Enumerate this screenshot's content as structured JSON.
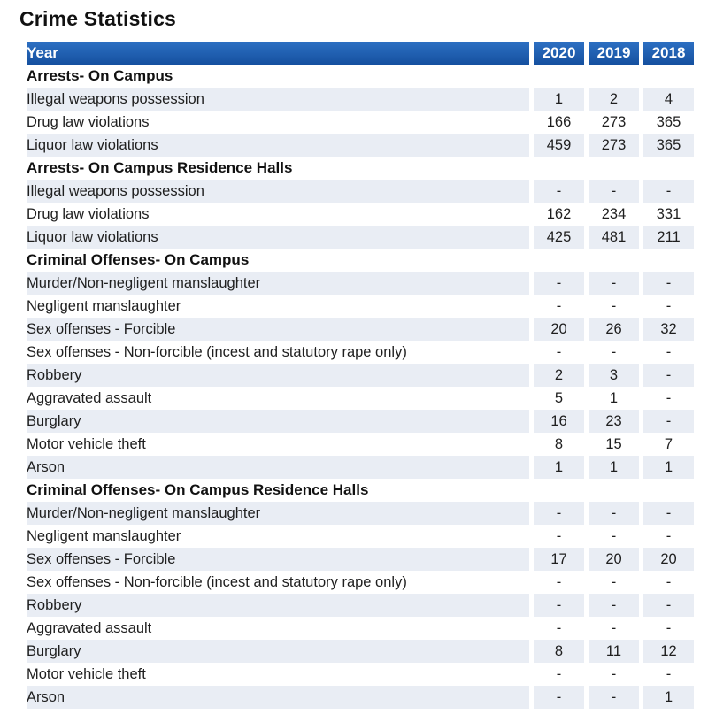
{
  "title": "Crime Statistics",
  "colors": {
    "header_bg_top": "#2d70c3",
    "header_bg_bottom": "#15509f",
    "header_text": "#ffffff",
    "stripe_bg": "#e9edf4",
    "body_text": "#1f1f1f"
  },
  "table": {
    "header": {
      "label": "Year",
      "years": [
        "2020",
        "2019",
        "2018"
      ]
    },
    "sections": [
      {
        "label": "Arrests- On Campus",
        "rows": [
          {
            "label": "Illegal weapons possession",
            "values": [
              "1",
              "2",
              "4"
            ]
          },
          {
            "label": "Drug law violations",
            "values": [
              "166",
              "273",
              "365"
            ]
          },
          {
            "label": "Liquor law violations",
            "values": [
              "459",
              "273",
              "365"
            ]
          }
        ]
      },
      {
        "label": "Arrests- On Campus Residence Halls",
        "rows": [
          {
            "label": "Illegal weapons possession",
            "values": [
              "-",
              "-",
              "-"
            ]
          },
          {
            "label": "Drug law violations",
            "values": [
              "162",
              "234",
              "331"
            ]
          },
          {
            "label": "Liquor law violations",
            "values": [
              "425",
              "481",
              "211"
            ]
          }
        ]
      },
      {
        "label": "Criminal Offenses- On Campus",
        "rows": [
          {
            "label": "Murder/Non-negligent manslaughter",
            "values": [
              "-",
              "-",
              "-"
            ]
          },
          {
            "label": "Negligent manslaughter",
            "values": [
              "-",
              "-",
              "-"
            ]
          },
          {
            "label": "Sex offenses - Forcible",
            "values": [
              "20",
              "26",
              "32"
            ]
          },
          {
            "label": "Sex offenses - Non-forcible (incest and statutory rape only)",
            "values": [
              "-",
              "-",
              "-"
            ]
          },
          {
            "label": "Robbery",
            "values": [
              "2",
              "3",
              "-"
            ]
          },
          {
            "label": "Aggravated assault",
            "values": [
              "5",
              "1",
              "-"
            ]
          },
          {
            "label": "Burglary",
            "values": [
              "16",
              "23",
              "-"
            ]
          },
          {
            "label": "Motor vehicle theft",
            "values": [
              "8",
              "15",
              "7"
            ]
          },
          {
            "label": "Arson",
            "values": [
              "1",
              "1",
              "1"
            ]
          }
        ]
      },
      {
        "label": "Criminal Offenses- On Campus Residence Halls",
        "rows": [
          {
            "label": "Murder/Non-negligent manslaughter",
            "values": [
              "-",
              "-",
              "-"
            ]
          },
          {
            "label": "Negligent manslaughter",
            "values": [
              "-",
              "-",
              "-"
            ]
          },
          {
            "label": "Sex offenses - Forcible",
            "values": [
              "17",
              "20",
              "20"
            ]
          },
          {
            "label": "Sex offenses - Non-forcible (incest and statutory rape only)",
            "values": [
              "-",
              "-",
              "-"
            ]
          },
          {
            "label": "Robbery",
            "values": [
              "-",
              "-",
              "-"
            ]
          },
          {
            "label": "Aggravated assault",
            "values": [
              "-",
              "-",
              "-"
            ]
          },
          {
            "label": "Burglary",
            "values": [
              "8",
              "11",
              "12"
            ]
          },
          {
            "label": "Motor vehicle theft",
            "values": [
              "-",
              "-",
              "-"
            ]
          },
          {
            "label": "Arson",
            "values": [
              "-",
              "-",
              "1"
            ]
          }
        ]
      }
    ]
  },
  "chart_data": {
    "type": "table",
    "title": "Crime Statistics",
    "columns": [
      "Year",
      "2020",
      "2019",
      "2018"
    ],
    "rows": [
      [
        "Arrests- On Campus",
        "",
        "",
        ""
      ],
      [
        "Illegal weapons possession",
        "1",
        "2",
        "4"
      ],
      [
        "Drug law violations",
        "166",
        "273",
        "365"
      ],
      [
        "Liquor law violations",
        "459",
        "273",
        "365"
      ],
      [
        "Arrests- On Campus Residence Halls",
        "",
        "",
        ""
      ],
      [
        "Illegal weapons possession",
        "-",
        "-",
        "-"
      ],
      [
        "Drug law violations",
        "162",
        "234",
        "331"
      ],
      [
        "Liquor law violations",
        "425",
        "481",
        "211"
      ],
      [
        "Criminal Offenses- On Campus",
        "",
        "",
        ""
      ],
      [
        "Murder/Non-negligent manslaughter",
        "-",
        "-",
        "-"
      ],
      [
        "Negligent manslaughter",
        "-",
        "-",
        "-"
      ],
      [
        "Sex offenses - Forcible",
        "20",
        "26",
        "32"
      ],
      [
        "Sex offenses - Non-forcible (incest and statutory rape only)",
        "-",
        "-",
        "-"
      ],
      [
        "Robbery",
        "2",
        "3",
        "-"
      ],
      [
        "Aggravated assault",
        "5",
        "1",
        "-"
      ],
      [
        "Burglary",
        "16",
        "23",
        "-"
      ],
      [
        "Motor vehicle theft",
        "8",
        "15",
        "7"
      ],
      [
        "Arson",
        "1",
        "1",
        "1"
      ],
      [
        "Criminal Offenses- On Campus Residence Halls",
        "",
        "",
        ""
      ],
      [
        "Murder/Non-negligent manslaughter",
        "-",
        "-",
        "-"
      ],
      [
        "Negligent manslaughter",
        "-",
        "-",
        "-"
      ],
      [
        "Sex offenses - Forcible",
        "17",
        "20",
        "20"
      ],
      [
        "Sex offenses - Non-forcible (incest and statutory rape only)",
        "-",
        "-",
        "-"
      ],
      [
        "Robbery",
        "-",
        "-",
        "-"
      ],
      [
        "Aggravated assault",
        "-",
        "-",
        "-"
      ],
      [
        "Burglary",
        "8",
        "11",
        "12"
      ],
      [
        "Motor vehicle theft",
        "-",
        "-",
        "-"
      ],
      [
        "Arson",
        "-",
        "-",
        "1"
      ]
    ]
  }
}
